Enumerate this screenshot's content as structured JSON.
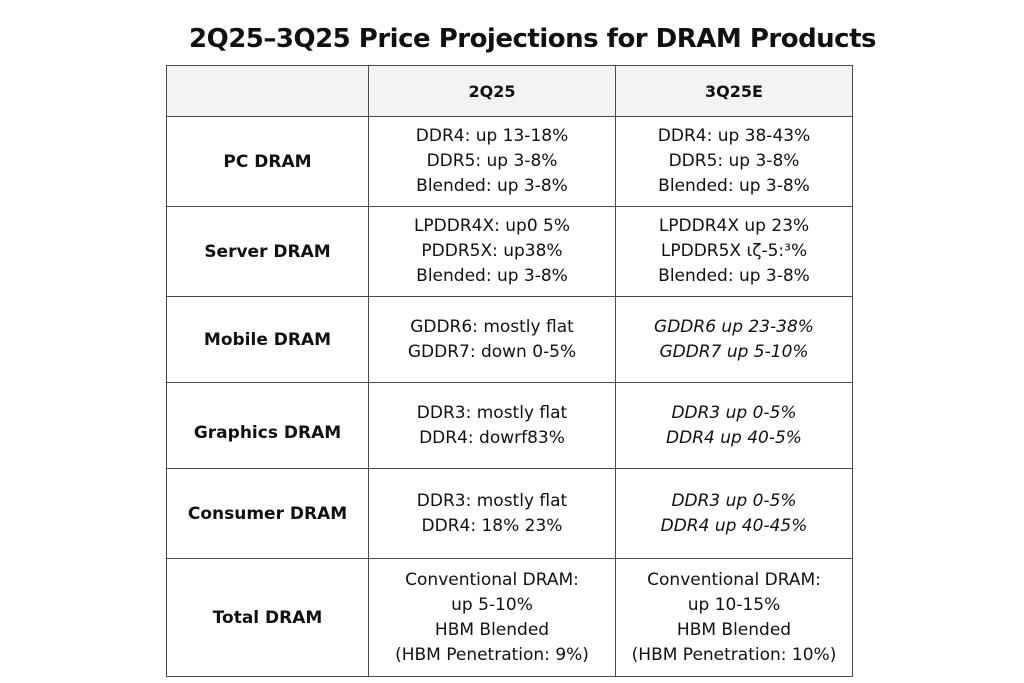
{
  "title": "2Q25–3Q25 Price Projections  for DRAM Products",
  "header": {
    "corner": "",
    "col1": "2Q25",
    "col2": "3Q25E"
  },
  "rows": [
    {
      "label": "PC DRAM",
      "q2": [
        "DDR4: up 13-18%",
        "DDR5: up 3-8%",
        "Blended: up 3-8%"
      ],
      "q3": [
        "DDR4: up 38-43%",
        "DDR5: up 3-8%",
        "Blended: up 3-8%"
      ]
    },
    {
      "label": "Server DRAM",
      "q2": [
        "LPDDR4X: up0 5%",
        "PDDR5X: up38%",
        "Blended: up 3-8%"
      ],
      "q3": [
        "LPDDR4X up 23%",
        "LPDDR5X ιζ-5:³%",
        "Blended: up 3-8%"
      ]
    },
    {
      "label": "Mobile DRAM",
      "q2": [
        "GDDR6: mostly flat",
        "GDDR7: down 0-5%"
      ],
      "q3": [
        "GDDR6 up 23-38%",
        "GDDR7 up 5-10%"
      ]
    },
    {
      "label": "Graphics DRAM",
      "q2": [
        "DDR3: mostly flat",
        "DDR4: dowrf83%"
      ],
      "q3": [
        "DDR3 up 0-5%",
        "DDR4 up 40-5%"
      ]
    },
    {
      "label": "Consumer DRAM",
      "q2": [
        "DDR3: mostly flat",
        "DDR4: 18%  23%"
      ],
      "q3": [
        "DDR3 up 0-5%",
        "DDR4 up 40-45%"
      ]
    },
    {
      "label": "Total DRAM",
      "q2": [
        "Conventional DRAM:",
        "up 5-10%",
        "HBM Blended",
        "(HBM Penetration:  9%)"
      ],
      "q3": [
        "Conventional DRAM:",
        "up 10-15%",
        "HBM Blended",
        "(HBM Penetration: 10%)"
      ]
    }
  ]
}
